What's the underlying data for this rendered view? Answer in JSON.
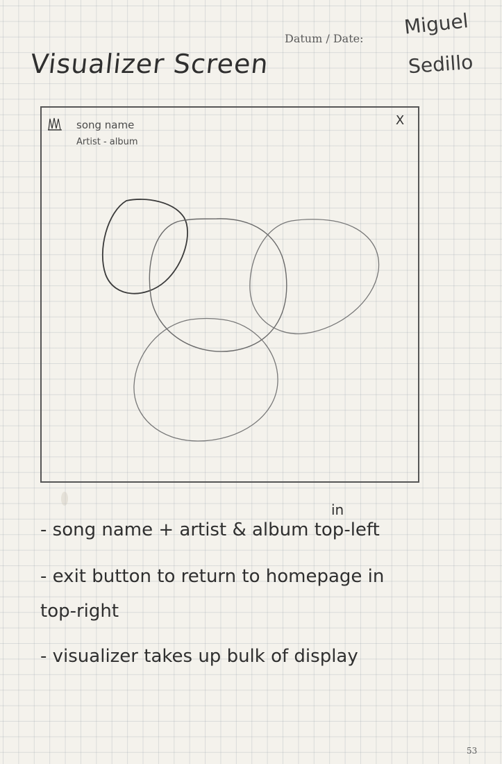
{
  "page": {
    "title": "Visualizer Screen",
    "date_label": "Datum / Date:",
    "author_first": "Miguel",
    "author_last": "Sedillo",
    "page_number": "53"
  },
  "mockup": {
    "song_name": "song name",
    "artist_album": "Artist - album",
    "album_icon": "album-art-icon",
    "close_label": "X",
    "close_icon": "close-icon"
  },
  "notes": {
    "line1": "- song name + artist & album top-left",
    "line1_insert": "in",
    "line2": "- exit button to return to homepage in",
    "line3": "top-right",
    "line4": "- visualizer takes up bulk of display"
  }
}
